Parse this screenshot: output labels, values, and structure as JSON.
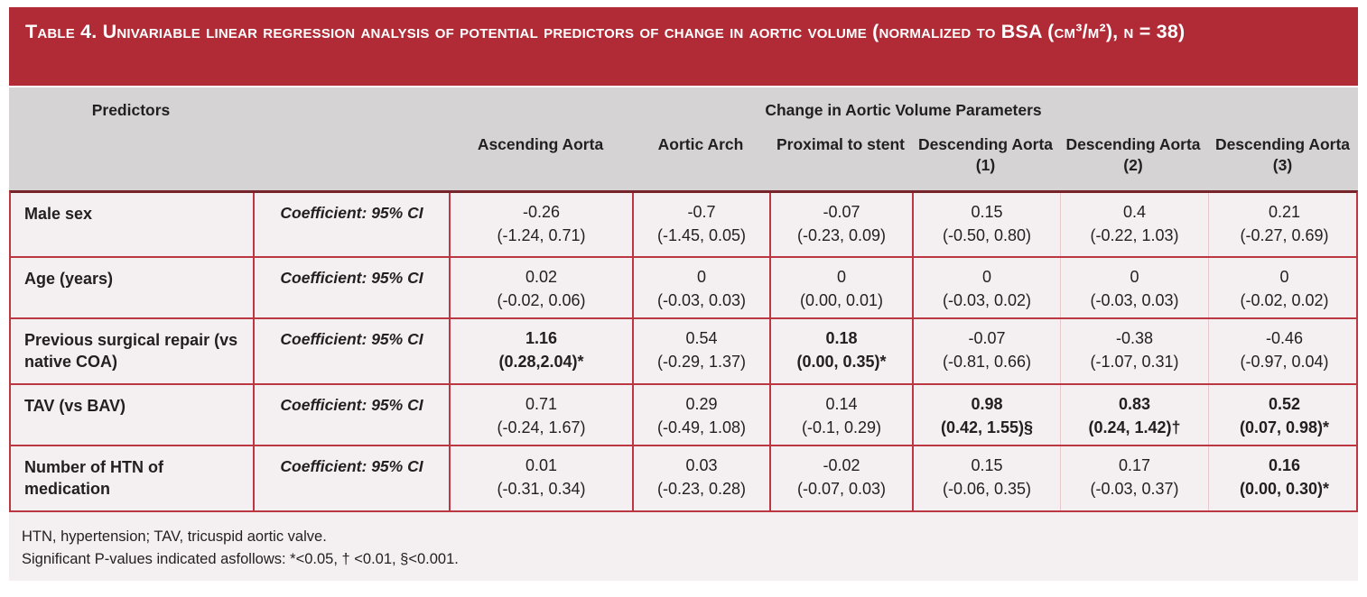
{
  "title": "Table 4. Univariable linear regression analysis of potential predictors of change in aortic volume (normalized to BSA (cm³/m²), n = 38)",
  "header": {
    "predictors": "Predictors",
    "group": "Change in Aortic Volume Parameters",
    "columns": [
      "Ascending Aorta",
      "Aortic Arch",
      "Proximal to stent",
      "Descending Aorta (1)",
      "Descending Aorta (2)",
      "Descending Aorta (3)"
    ]
  },
  "measure_label": "Coefficient: 95% CI",
  "rows": [
    {
      "predictor": "Male sex",
      "cells": [
        {
          "coef": "-0.26",
          "ci": "(-1.24, 0.71)",
          "significant": false
        },
        {
          "coef": "-0.7",
          "ci": "(-1.45, 0.05)",
          "significant": false
        },
        {
          "coef": "-0.07",
          "ci": "(-0.23, 0.09)",
          "significant": false
        },
        {
          "coef": "0.15",
          "ci": "(-0.50, 0.80)",
          "significant": false
        },
        {
          "coef": "0.4",
          "ci": "(-0.22, 1.03)",
          "significant": false
        },
        {
          "coef": "0.21",
          "ci": "(-0.27, 0.69)",
          "significant": false
        }
      ]
    },
    {
      "predictor": "Age (years)",
      "cells": [
        {
          "coef": "0.02",
          "ci": "(-0.02, 0.06)",
          "significant": false
        },
        {
          "coef": "0",
          "ci": "(-0.03, 0.03)",
          "significant": false
        },
        {
          "coef": "0",
          "ci": "(0.00, 0.01)",
          "significant": false
        },
        {
          "coef": "0",
          "ci": "(-0.03, 0.02)",
          "significant": false
        },
        {
          "coef": "0",
          "ci": "(-0.03, 0.03)",
          "significant": false
        },
        {
          "coef": "0",
          "ci": "(-0.02, 0.02)",
          "significant": false
        }
      ]
    },
    {
      "predictor": "Previous surgical repair (vs native COA)",
      "cells": [
        {
          "coef": "1.16",
          "ci": "(0.28,2.04)*",
          "significant": true
        },
        {
          "coef": "0.54",
          "ci": "(-0.29, 1.37)",
          "significant": false
        },
        {
          "coef": "0.18",
          "ci": "(0.00, 0.35)*",
          "significant": true
        },
        {
          "coef": "-0.07",
          "ci": "(-0.81, 0.66)",
          "significant": false
        },
        {
          "coef": "-0.38",
          "ci": "(-1.07, 0.31)",
          "significant": false
        },
        {
          "coef": "-0.46",
          "ci": "(-0.97, 0.04)",
          "significant": false
        }
      ]
    },
    {
      "predictor": "TAV (vs BAV)",
      "cells": [
        {
          "coef": "0.71",
          "ci": "(-0.24, 1.67)",
          "significant": false
        },
        {
          "coef": "0.29",
          "ci": "(-0.49, 1.08)",
          "significant": false
        },
        {
          "coef": "0.14",
          "ci": "(-0.1, 0.29)",
          "significant": false
        },
        {
          "coef": "0.98",
          "ci": "(0.42, 1.55)§",
          "significant": true
        },
        {
          "coef": "0.83",
          "ci": "(0.24, 1.42)†",
          "significant": true
        },
        {
          "coef": "0.52",
          "ci": "(0.07, 0.98)*",
          "significant": true
        }
      ]
    },
    {
      "predictor": "Number of HTN of medication",
      "cells": [
        {
          "coef": "0.01",
          "ci": "(-0.31, 0.34)",
          "significant": false
        },
        {
          "coef": "0.03",
          "ci": "(-0.23, 0.28)",
          "significant": false
        },
        {
          "coef": "-0.02",
          "ci": "(-0.07, 0.03)",
          "significant": false
        },
        {
          "coef": "0.15",
          "ci": "(-0.06, 0.35)",
          "significant": false
        },
        {
          "coef": "0.17",
          "ci": "(-0.03, 0.37)",
          "significant": false
        },
        {
          "coef": "0.16",
          "ci": "(0.00, 0.30)*",
          "significant": true
        }
      ]
    }
  ],
  "footnotes": {
    "abbreviations": "HTN, hypertension; TAV, tricuspid aortic valve.",
    "significance": "Significant P-values indicated asfollows: *<0.05, † <0.01, §<0.001."
  },
  "colors": {
    "title_bar": "#B02B36",
    "cell_border": "#BB3742",
    "faint_divider": "#E5C9CC",
    "header_bg": "#D5D3D4",
    "row_bg": "#F4EFF0",
    "text": "#231F20"
  }
}
